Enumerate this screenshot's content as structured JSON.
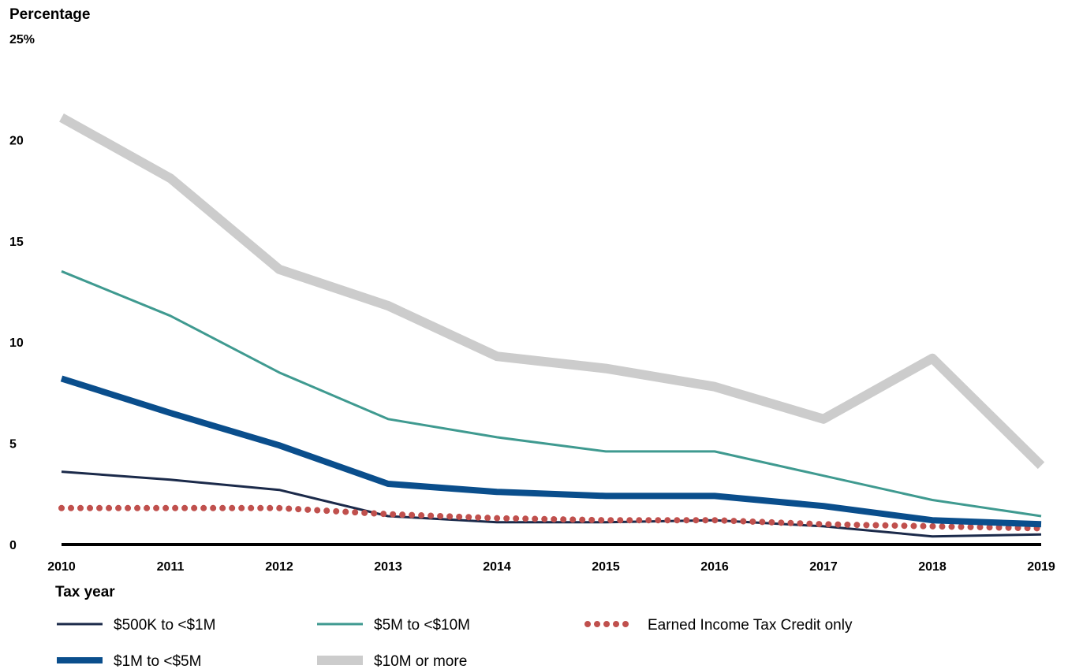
{
  "chart_data": {
    "type": "line",
    "title": "",
    "ylabel": "Percentage",
    "xlabel": "Tax year",
    "ylim": [
      0,
      25
    ],
    "y_ticks": [
      {
        "value": 0,
        "label": "0"
      },
      {
        "value": 5,
        "label": "5"
      },
      {
        "value": 10,
        "label": "10"
      },
      {
        "value": 15,
        "label": "15"
      },
      {
        "value": 20,
        "label": "20"
      },
      {
        "value": 25,
        "label": "25%"
      }
    ],
    "x": [
      "2010",
      "2011",
      "2012",
      "2013",
      "2014",
      "2015",
      "2016",
      "2017",
      "2018",
      "2019"
    ],
    "grid": false,
    "legend_position": "bottom",
    "series": [
      {
        "name": "$500K to <$1M",
        "color": "#1b2a4a",
        "style": "solid-thin",
        "values": [
          3.6,
          3.2,
          2.7,
          1.4,
          1.1,
          1.1,
          1.2,
          0.9,
          0.4,
          0.5
        ]
      },
      {
        "name": "$1M to <$5M",
        "color": "#0a4e8c",
        "style": "solid-thick",
        "values": [
          8.2,
          6.5,
          4.9,
          3.0,
          2.6,
          2.4,
          2.4,
          1.9,
          1.2,
          1.0
        ]
      },
      {
        "name": "$5M to <$10M",
        "color": "#3f9a90",
        "style": "solid-thin",
        "values": [
          13.5,
          11.3,
          8.5,
          6.2,
          5.3,
          4.6,
          4.6,
          3.4,
          2.2,
          1.4
        ]
      },
      {
        "name": "$10M or more",
        "color": "#cccccc",
        "style": "solid-xthick",
        "values": [
          21.1,
          18.1,
          13.6,
          11.8,
          9.3,
          8.7,
          7.8,
          6.2,
          9.2,
          3.9
        ]
      },
      {
        "name": "Earned Income Tax Credit only",
        "color": "#c0504d",
        "style": "dotted",
        "values": [
          1.8,
          1.8,
          1.8,
          1.5,
          1.3,
          1.2,
          1.2,
          1.0,
          0.9,
          0.8
        ]
      }
    ]
  }
}
